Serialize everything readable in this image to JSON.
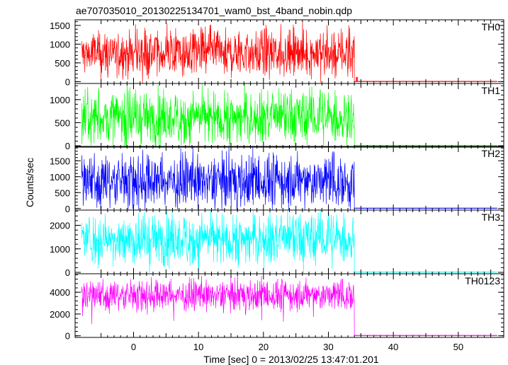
{
  "chart_data": {
    "type": "line",
    "title": "ae707035010_20130225134701_wam0_bst_4band_nobin.qdp",
    "xlabel": "Time [sec] 0 = 2013/02/25 13:47:01.201",
    "ylabel": "Counts/sec",
    "xlim": [
      -9,
      57
    ],
    "xticks": [
      "0",
      "10",
      "20",
      "30",
      "40",
      "50"
    ],
    "grid": false,
    "shared_x": true,
    "burst_end_x": 34.0,
    "panels": [
      {
        "name": "TH0",
        "color": "#ff0000",
        "ylim": [
          -50,
          1650
        ],
        "yticks": [
          "0",
          "500",
          "1000",
          "1500"
        ],
        "on": {
          "x_range": [
            -8.0,
            34.0
          ],
          "mean": 750,
          "low": 250,
          "high": 1250,
          "peak_high": 1550
        },
        "off": {
          "x_range": [
            34.0,
            56.0
          ],
          "level": 5,
          "spike": 110
        }
      },
      {
        "name": "TH1",
        "color": "#00ff00",
        "ylim": [
          -30,
          1350
        ],
        "yticks": [
          "0",
          "500",
          "1000"
        ],
        "on": {
          "x_range": [
            -8.0,
            34.0
          ],
          "mean": 600,
          "low": 150,
          "high": 1100,
          "peak_high": 1280
        },
        "off": {
          "x_range": [
            34.0,
            56.0
          ],
          "level": 5
        }
      },
      {
        "name": "TH2",
        "color": "#0000ff",
        "ylim": [
          -50,
          1950
        ],
        "yticks": [
          "0",
          "500",
          "1000",
          "1500"
        ],
        "on": {
          "x_range": [
            -8.0,
            34.0
          ],
          "mean": 850,
          "low": 200,
          "high": 1550,
          "peak_high": 1900
        },
        "off": {
          "x_range": [
            34.0,
            56.0
          ],
          "level": 10
        }
      },
      {
        "name": "TH3",
        "color": "#00ffff",
        "ylim": [
          -60,
          2650
        ],
        "yticks": [
          "0",
          "1000",
          "2000"
        ],
        "on": {
          "x_range": [
            -8.0,
            34.0
          ],
          "mean": 1400,
          "low": 500,
          "high": 2300,
          "peak_high": 2550
        },
        "off": {
          "x_range": [
            34.0,
            56.0
          ],
          "level": 10
        }
      },
      {
        "name": "TH0123",
        "color": "#ff00ff",
        "ylim": [
          -150,
          5700
        ],
        "yticks": [
          "0",
          "2000",
          "4000"
        ],
        "on": {
          "x_range": [
            -8.0,
            34.0
          ],
          "mean": 3700,
          "low": 2500,
          "high": 4800,
          "peak_high": 5400
        },
        "off": {
          "x_range": [
            34.0,
            56.0
          ],
          "level": 30
        }
      }
    ]
  }
}
